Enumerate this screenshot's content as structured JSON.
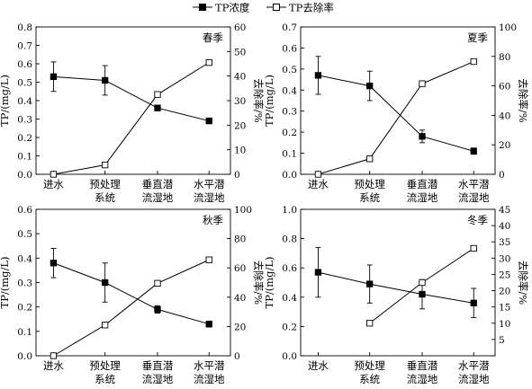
{
  "legend": {
    "items": [
      {
        "label": "TP浓度",
        "marker": "filled-square"
      },
      {
        "label": "TP去除率",
        "marker": "open-square"
      }
    ]
  },
  "colors": {
    "ink": "#000000",
    "background": "#ffffff"
  },
  "chart_data": [
    {
      "type": "line",
      "title": "春季",
      "categories": [
        "进水",
        "预处理系统",
        "垂直潜流湿地",
        "水平潜流湿地"
      ],
      "category_lines": [
        [
          "进水"
        ],
        [
          "预处理",
          "系统"
        ],
        [
          "垂直潜",
          "流湿地"
        ],
        [
          "水平潜",
          "流湿地"
        ]
      ],
      "ylabel": "TP/(mg/L)",
      "ylabel_right": "去除率/%",
      "ylim": [
        0,
        0.8
      ],
      "yticks": [
        "0.0",
        "0.1",
        "0.2",
        "0.3",
        "0.4",
        "0.5",
        "0.6",
        "0.7",
        "0.8"
      ],
      "ylim_right": [
        0,
        60
      ],
      "yticks_right": [
        "0",
        "10",
        "20",
        "30",
        "40",
        "50",
        "60"
      ],
      "series": [
        {
          "name": "TP浓度",
          "axis": "left",
          "marker": "filled-square",
          "values": [
            0.53,
            0.51,
            0.36,
            0.29
          ],
          "errors": [
            0.08,
            0.08,
            0.015,
            0.015
          ]
        },
        {
          "name": "TP去除率",
          "axis": "right",
          "marker": "open-square",
          "values": [
            0,
            3.8,
            32.5,
            45.5
          ]
        }
      ]
    },
    {
      "type": "line",
      "title": "夏季",
      "categories": [
        "进水",
        "预处理系统",
        "垂直潜流湿地",
        "水平潜流湿地"
      ],
      "category_lines": [
        [
          "进水"
        ],
        [
          "预处理",
          "系统"
        ],
        [
          "垂直潜",
          "流湿地"
        ],
        [
          "水平潜",
          "流湿地"
        ]
      ],
      "ylabel": "TP/(mg/L)",
      "ylabel_right": "去除率/%",
      "ylim": [
        0,
        0.7
      ],
      "yticks": [
        "0.0",
        "0.1",
        "0.2",
        "0.3",
        "0.4",
        "0.5",
        "0.6",
        "0.7"
      ],
      "ylim_right": [
        0,
        100
      ],
      "yticks_right": [
        "0",
        "20",
        "40",
        "60",
        "80",
        "100"
      ],
      "series": [
        {
          "name": "TP浓度",
          "axis": "left",
          "marker": "filled-square",
          "values": [
            0.47,
            0.42,
            0.18,
            0.11
          ],
          "errors": [
            0.09,
            0.07,
            0.03,
            0.015
          ]
        },
        {
          "name": "TP去除率",
          "axis": "right",
          "marker": "open-square",
          "values": [
            0,
            10.5,
            61.5,
            76.5
          ]
        }
      ]
    },
    {
      "type": "line",
      "title": "秋季",
      "categories": [
        "进水",
        "预处理系统",
        "垂直潜流湿地",
        "水平潜流湿地"
      ],
      "category_lines": [
        [
          "进水"
        ],
        [
          "预处理",
          "系统"
        ],
        [
          "垂直潜",
          "流湿地"
        ],
        [
          "水平潜",
          "流湿地"
        ]
      ],
      "ylabel": "TP/(mg/L)",
      "ylabel_right": "去除率/%",
      "ylim": [
        0,
        0.6
      ],
      "yticks": [
        "0.0",
        "0.1",
        "0.2",
        "0.3",
        "0.4",
        "0.5",
        "0.6"
      ],
      "ylim_right": [
        0,
        100
      ],
      "yticks_right": [
        "0",
        "20",
        "40",
        "60",
        "80",
        "100"
      ],
      "series": [
        {
          "name": "TP浓度",
          "axis": "left",
          "marker": "filled-square",
          "values": [
            0.38,
            0.3,
            0.19,
            0.13
          ],
          "errors": [
            0.06,
            0.08,
            0.015,
            0.012
          ]
        },
        {
          "name": "TP去除率",
          "axis": "right",
          "marker": "open-square",
          "values": [
            0,
            21,
            49.5,
            65.5
          ]
        }
      ]
    },
    {
      "type": "line",
      "title": "冬季",
      "categories": [
        "进水",
        "预处理系统",
        "垂直潜流湿地",
        "水平潜流湿地"
      ],
      "category_lines": [
        [
          "进水"
        ],
        [
          "预处理",
          "系统"
        ],
        [
          "垂直潜",
          "流湿地"
        ],
        [
          "水平潜",
          "流湿地"
        ]
      ],
      "ylabel": "TP/(mg/L)",
      "ylabel_right": "去除率/%",
      "ylim": [
        0,
        1.0
      ],
      "yticks": [
        "0.0",
        "0.2",
        "0.4",
        "0.6",
        "0.8",
        "1.0"
      ],
      "ylim_right": [
        0,
        45
      ],
      "yticks_right": [
        "",
        "5",
        "10",
        "15",
        "20",
        "25",
        "30",
        "35",
        "40",
        "45"
      ],
      "series": [
        {
          "name": "TP浓度",
          "axis": "left",
          "marker": "filled-square",
          "values": [
            0.57,
            0.49,
            0.42,
            0.36
          ],
          "errors": [
            0.17,
            0.13,
            0.1,
            0.1
          ]
        },
        {
          "name": "TP去除率",
          "axis": "right",
          "marker": "open-square",
          "values": [
            null,
            10,
            22.5,
            33
          ]
        }
      ]
    }
  ]
}
